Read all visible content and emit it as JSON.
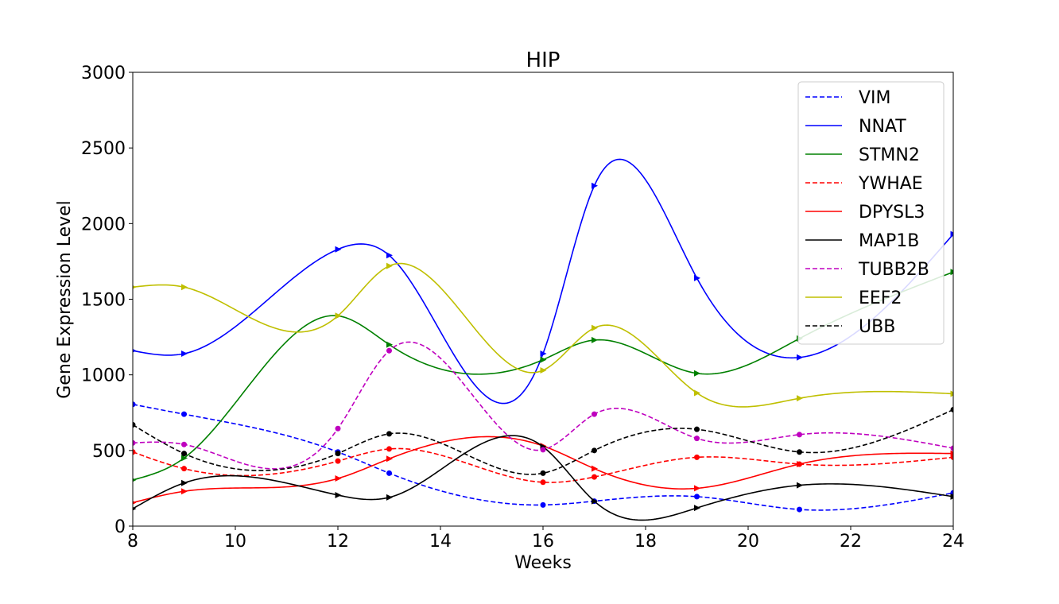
{
  "chart_data": {
    "type": "line",
    "title": "HIP",
    "xlabel": "Weeks",
    "ylabel": "Gene Expression Level",
    "xlim": [
      8,
      24
    ],
    "ylim": [
      0,
      3000
    ],
    "x_ticks": [
      "8",
      "10",
      "12",
      "14",
      "16",
      "18",
      "20",
      "22",
      "24"
    ],
    "y_ticks": [
      "0",
      "500",
      "1000",
      "1500",
      "2000",
      "2500",
      "3000"
    ],
    "x_tick_values": [
      8,
      10,
      12,
      14,
      16,
      18,
      20,
      22,
      24
    ],
    "y_tick_values": [
      0,
      500,
      1000,
      1500,
      2000,
      2500,
      3000
    ],
    "grid": false,
    "legend_position": "top-right",
    "x": [
      8,
      9,
      12,
      13,
      16,
      17,
      19,
      21,
      24
    ],
    "series": [
      {
        "name": "VIM",
        "color": "#0000ff",
        "dash": true,
        "marker": "circle",
        "values": [
          805,
          740,
          490,
          350,
          140,
          165,
          195,
          110,
          220
        ]
      },
      {
        "name": "NNAT",
        "color": "#0000ff",
        "dash": false,
        "marker": "triangle",
        "values": [
          1160,
          1140,
          1830,
          1790,
          1140,
          2250,
          1640,
          1115,
          1930
        ]
      },
      {
        "name": "STMN2",
        "color": "#008000",
        "dash": false,
        "marker": "triangle",
        "values": [
          305,
          450,
          1390,
          1200,
          1100,
          1230,
          1010,
          1240,
          1680
        ]
      },
      {
        "name": "YWHAE",
        "color": "#ff0000",
        "dash": true,
        "marker": "circle",
        "values": [
          490,
          380,
          430,
          510,
          290,
          325,
          455,
          410,
          455
        ]
      },
      {
        "name": "DPYSL3",
        "color": "#ff0000",
        "dash": false,
        "marker": "triangle",
        "values": [
          155,
          230,
          315,
          445,
          530,
          380,
          250,
          410,
          480
        ]
      },
      {
        "name": "MAP1B",
        "color": "#000000",
        "dash": false,
        "marker": "triangle",
        "values": [
          115,
          285,
          205,
          190,
          525,
          165,
          120,
          270,
          195
        ]
      },
      {
        "name": "TUBB2B",
        "color": "#bf00bf",
        "dash": true,
        "marker": "circle",
        "values": [
          550,
          540,
          645,
          1160,
          505,
          740,
          580,
          605,
          515
        ]
      },
      {
        "name": "EEF2",
        "color": "#bfbf00",
        "dash": false,
        "marker": "triangle",
        "values": [
          1580,
          1580,
          1390,
          1720,
          1030,
          1310,
          880,
          845,
          875
        ]
      },
      {
        "name": "UBB",
        "color": "#000000",
        "dash": true,
        "marker": "circle",
        "values": [
          670,
          480,
          480,
          610,
          350,
          500,
          640,
          490,
          770
        ]
      }
    ]
  }
}
